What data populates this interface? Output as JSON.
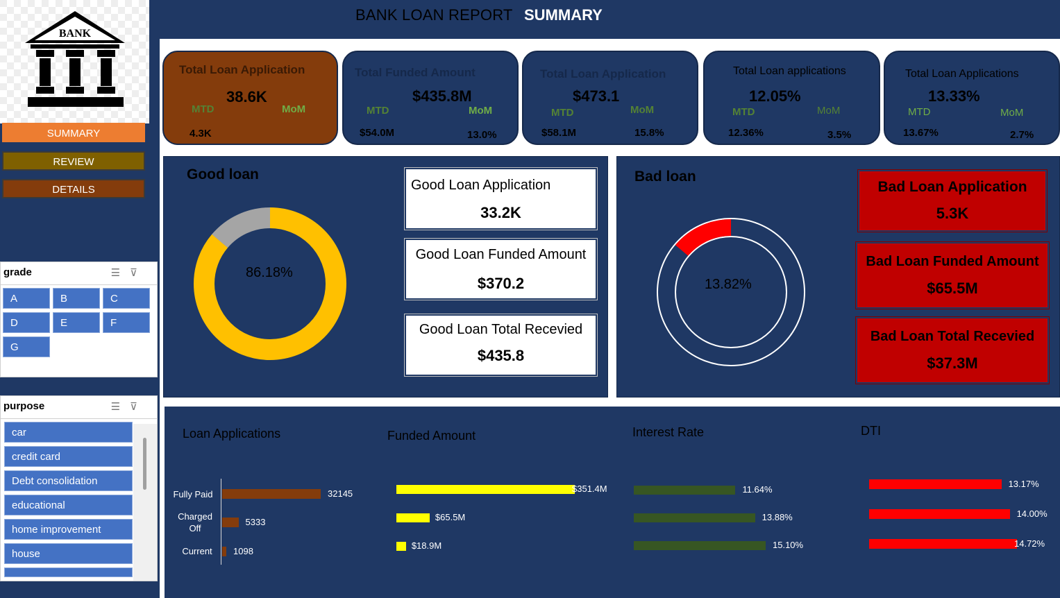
{
  "header": {
    "title": "BANK LOAN REPORT",
    "subtitle": "SUMMARY"
  },
  "logo": {
    "text": "BANK"
  },
  "nav": [
    {
      "label": "SUMMARY",
      "color": "#ed7d31"
    },
    {
      "label": "REVIEW",
      "color": "#7f6000"
    },
    {
      "label": "DETAILS",
      "color": "#843c0c"
    }
  ],
  "grade_slicer": {
    "title": "grade",
    "options": [
      "A",
      "B",
      "C",
      "D",
      "E",
      "F",
      "G"
    ]
  },
  "purpose_slicer": {
    "title": "purpose",
    "options": [
      "car",
      "credit card",
      "Debt consolidation",
      "educational",
      "home improvement",
      "house"
    ]
  },
  "kpis": [
    {
      "title": "Total Loan Application",
      "value": "38.6K",
      "mtd_label": "MTD",
      "mom_label": "MoM",
      "mtd_value": "4.3K",
      "mom_value": ""
    },
    {
      "title": "Total Funded Amount",
      "value": "$435.8M",
      "mtd_label": "MTD",
      "mom_label": "MoM",
      "mtd_value": "$54.0M",
      "mom_value": "13.0%"
    },
    {
      "title": "Total Loan Application",
      "value": "$473.1",
      "mtd_label": "MTD",
      "mom_label": "MoM",
      "mtd_value": "$58.1M",
      "mom_value": "15.8%"
    },
    {
      "title": "Total Loan applications",
      "value": "12.05%",
      "mtd_label": "MTD",
      "mom_label": "MoM",
      "mtd_value": "12.36%",
      "mom_value": "3.5%"
    },
    {
      "title": "Total Loan Applications",
      "value": "13.33%",
      "mtd_label": "MTD",
      "mom_label": "MoM",
      "mtd_value": "13.67%",
      "mom_value": "2.7%"
    }
  ],
  "good_loan": {
    "title": "Good loan",
    "percent_label": "86.18%",
    "percent": 86.18,
    "boxes": [
      {
        "label": "Good Loan Application",
        "value": "33.2K"
      },
      {
        "label": "Good Loan Funded Amount",
        "value": "$370.2"
      },
      {
        "label": "Good Loan Total Recevied",
        "value": "$435.8"
      }
    ]
  },
  "bad_loan": {
    "title": "Bad loan",
    "percent_label": "13.82%",
    "percent": 13.82,
    "boxes": [
      {
        "label": "Bad Loan Application",
        "value": "5.3K"
      },
      {
        "label": "Bad Loan Funded Amount",
        "value": "$65.5M"
      },
      {
        "label": "Bad Loan Total Recevied",
        "value": "$37.3M"
      }
    ]
  },
  "chart_data": [
    {
      "type": "bar",
      "title": "Loan Applications",
      "categories": [
        "Fully Paid",
        "Charged Off",
        "Current"
      ],
      "values": [
        32145,
        5333,
        1098
      ],
      "labels": [
        "32145",
        "5333",
        "1098"
      ],
      "color": "#843c0c"
    },
    {
      "type": "bar",
      "title": "Funded Amount",
      "categories": [
        "Fully Paid",
        "Charged Off",
        "Current"
      ],
      "values": [
        351.4,
        65.5,
        18.9
      ],
      "labels": [
        "$351.4M",
        "$65.5M",
        "$18.9M"
      ],
      "color": "#ffff00"
    },
    {
      "type": "bar",
      "title": "Interest Rate",
      "categories": [
        "Fully Paid",
        "Charged Off",
        "Current"
      ],
      "values": [
        11.64,
        13.88,
        15.1
      ],
      "labels": [
        "11.64%",
        "13.88%",
        "15.10%"
      ],
      "color": "#375623"
    },
    {
      "type": "bar",
      "title": "DTI",
      "categories": [
        "Fully Paid",
        "Charged Off",
        "Current"
      ],
      "values": [
        13.17,
        14.0,
        14.72
      ],
      "labels": [
        "13.17%",
        "14.00%",
        "14.72%"
      ],
      "color": "#ff0000"
    }
  ]
}
